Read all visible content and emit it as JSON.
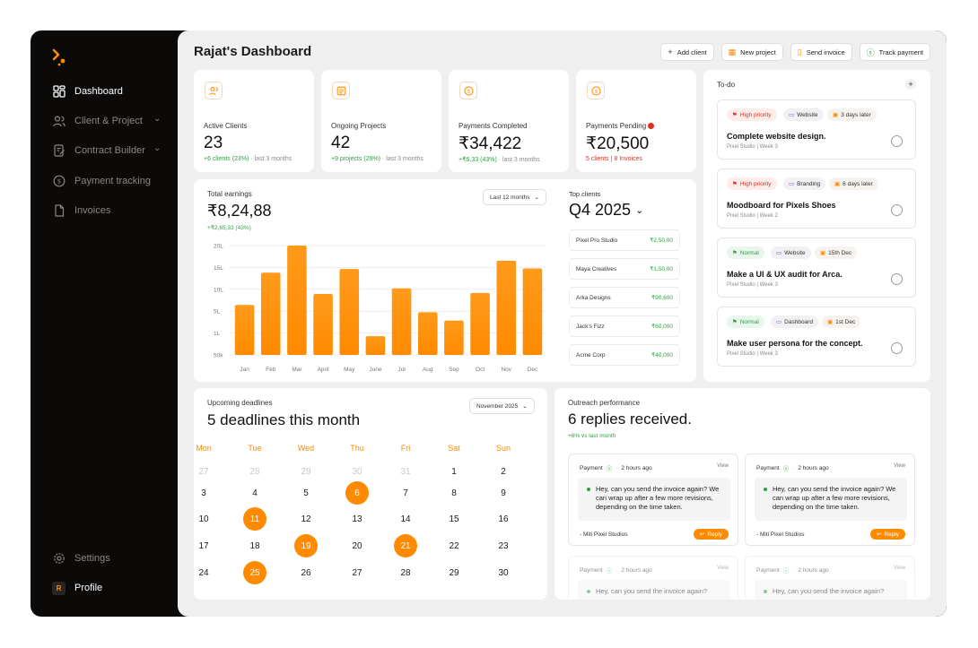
{
  "sidebar": {
    "items": [
      {
        "label": "Dashboard",
        "icon": "dashboard-icon",
        "active": true
      },
      {
        "label": "Client & Project",
        "icon": "users-icon",
        "expandable": true
      },
      {
        "label": "Contract Builder",
        "icon": "contract-icon",
        "expandable": true
      },
      {
        "label": "Payment tracking",
        "icon": "dollar-circle-icon"
      },
      {
        "label": "Invoices",
        "icon": "file-icon"
      }
    ],
    "settings_label": "Settings",
    "profile_label": "Profile",
    "profile_initial": "R"
  },
  "header": {
    "title": "Rajat's Dashboard",
    "actions": [
      {
        "label": "Add client",
        "icon": "plus-icon"
      },
      {
        "label": "New project",
        "icon": "grid-icon"
      },
      {
        "label": "Send invoice",
        "icon": "document-icon"
      },
      {
        "label": "Track payment",
        "icon": "dollar-circle-icon"
      }
    ]
  },
  "stats": [
    {
      "label": "Active Clients",
      "value": "23",
      "delta": "+6 clients (23%)",
      "period": "· last 3 months",
      "icon": "users-icon"
    },
    {
      "label": "Ongoing Projects",
      "value": "42",
      "delta": "+9 projects (29%)",
      "period": "· last 3 months",
      "icon": "list-icon"
    },
    {
      "label": "Payments Completed",
      "value": "₹34,422",
      "delta": "+₹6,33 (43%)",
      "period": "· last 3 months",
      "icon": "dollar-circle-icon"
    },
    {
      "label": "Payments Pending",
      "value": "₹20,500",
      "delta": "5 clients | 8 Invoices",
      "period": "",
      "icon": "dollar-circle-icon"
    }
  ],
  "earnings": {
    "title": "Total earnings",
    "value": "₹8,24,88",
    "delta": "+₹2,65,33 (43%)",
    "range_select": "Last 12 months"
  },
  "chart_data": {
    "type": "bar",
    "categories": [
      "Jan",
      "Feb",
      "Mar",
      "April",
      "May",
      "June",
      "Jul",
      "Aug",
      "Sep",
      "Oct",
      "Nov",
      "Dec"
    ],
    "values": [
      9.6,
      15.8,
      21,
      11.7,
      16.5,
      3.6,
      12.8,
      8.2,
      6.6,
      11.9,
      18.1,
      16.6
    ],
    "y_tick_labels": [
      "20L",
      "15L",
      "10L",
      "5L",
      "1L",
      "50k"
    ],
    "ylim": [
      0,
      21
    ],
    "title": "",
    "xlabel": "",
    "ylabel": "",
    "color": "#ff8a00",
    "grid": true
  },
  "top_clients": {
    "title": "Top clients",
    "period": "Q4 2025",
    "rows": [
      {
        "name": "Pixel Pro Studio",
        "amount": "₹2,50,00"
      },
      {
        "name": "Maya Creatives",
        "amount": "₹1,50,00"
      },
      {
        "name": "Arka Designs",
        "amount": "₹90,600"
      },
      {
        "name": "Jack's Fizz",
        "amount": "₹60,000"
      },
      {
        "name": "Acme Corp",
        "amount": "₹40,000"
      }
    ]
  },
  "todo": {
    "title": "To-do",
    "items": [
      {
        "priority": "High priority",
        "priority_type": "red",
        "category": "Website",
        "due": "3 days later",
        "title": "Complete website design.",
        "sub": "Pixel Studio | Week 3"
      },
      {
        "priority": "High priority",
        "priority_type": "red",
        "category": "Branding",
        "due": "6 days later",
        "title": "Moodboard for Pixels Shoes",
        "sub": "Pixel Studio | Week 2"
      },
      {
        "priority": "Normal",
        "priority_type": "green",
        "category": "Website",
        "due": "15th Dec",
        "title": "Make a UI & UX audit for Arca.",
        "sub": "Pixel Studio | Week 3"
      },
      {
        "priority": "Normal",
        "priority_type": "green",
        "category": "Dashboard",
        "due": "1st Dec",
        "title": "Make user persona for the concept.",
        "sub": "Pixel Studio | Week 3"
      }
    ]
  },
  "deadlines": {
    "title": "Upcoming deadlines",
    "headline": "5 deadlines this month",
    "month_select": "November 2025",
    "weekdays": [
      "Mon",
      "Tue",
      "Wed",
      "Thu",
      "Fri",
      "Sat",
      "Sun"
    ],
    "weeks": [
      [
        "27",
        "28",
        "29",
        "30",
        "31",
        "1",
        "2"
      ],
      [
        "3",
        "4",
        "5",
        "6",
        "7",
        "8",
        "9"
      ],
      [
        "10",
        "11",
        "12",
        "13",
        "14",
        "15",
        "16"
      ],
      [
        "17",
        "18",
        "19",
        "20",
        "21",
        "22",
        "23"
      ],
      [
        "24",
        "25",
        "26",
        "27",
        "28",
        "29",
        "30"
      ]
    ],
    "muted_first_row_count": 5,
    "highlighted": [
      "6",
      "11",
      "19",
      "21",
      "25"
    ]
  },
  "outreach": {
    "title": "Outreach performance",
    "headline": "6 replies received.",
    "delta": "+6% vs last month",
    "messages": [
      {
        "type": "Payment",
        "time": "2 hours ago",
        "view": "View",
        "body": "Hey, can you send the invoice again? We can wrap up after a few more revisions, depending on the time taken.",
        "from": "- Miti Pixel Studios",
        "reply": "Reply"
      },
      {
        "type": "Payment",
        "time": "2 hours ago",
        "view": "View",
        "body": "Hey, can you send the invoice again? We can wrap up after a few more revisions, depending on the time taken.",
        "from": "- Miti Pixel Studios",
        "reply": "Reply"
      },
      {
        "type": "Payment",
        "time": "2 hours ago",
        "view": "View",
        "body": "Hey, can you send the invoice again?",
        "from": "",
        "reply": ""
      },
      {
        "type": "Payment",
        "time": "2 hours ago",
        "view": "View",
        "body": "Hey, can you send the invoice again?",
        "from": "",
        "reply": ""
      }
    ]
  },
  "colors": {
    "accent": "#ff8a00",
    "sidebar_bg": "#0c0a09",
    "positive": "#2ea043",
    "negative": "#e0301e"
  }
}
